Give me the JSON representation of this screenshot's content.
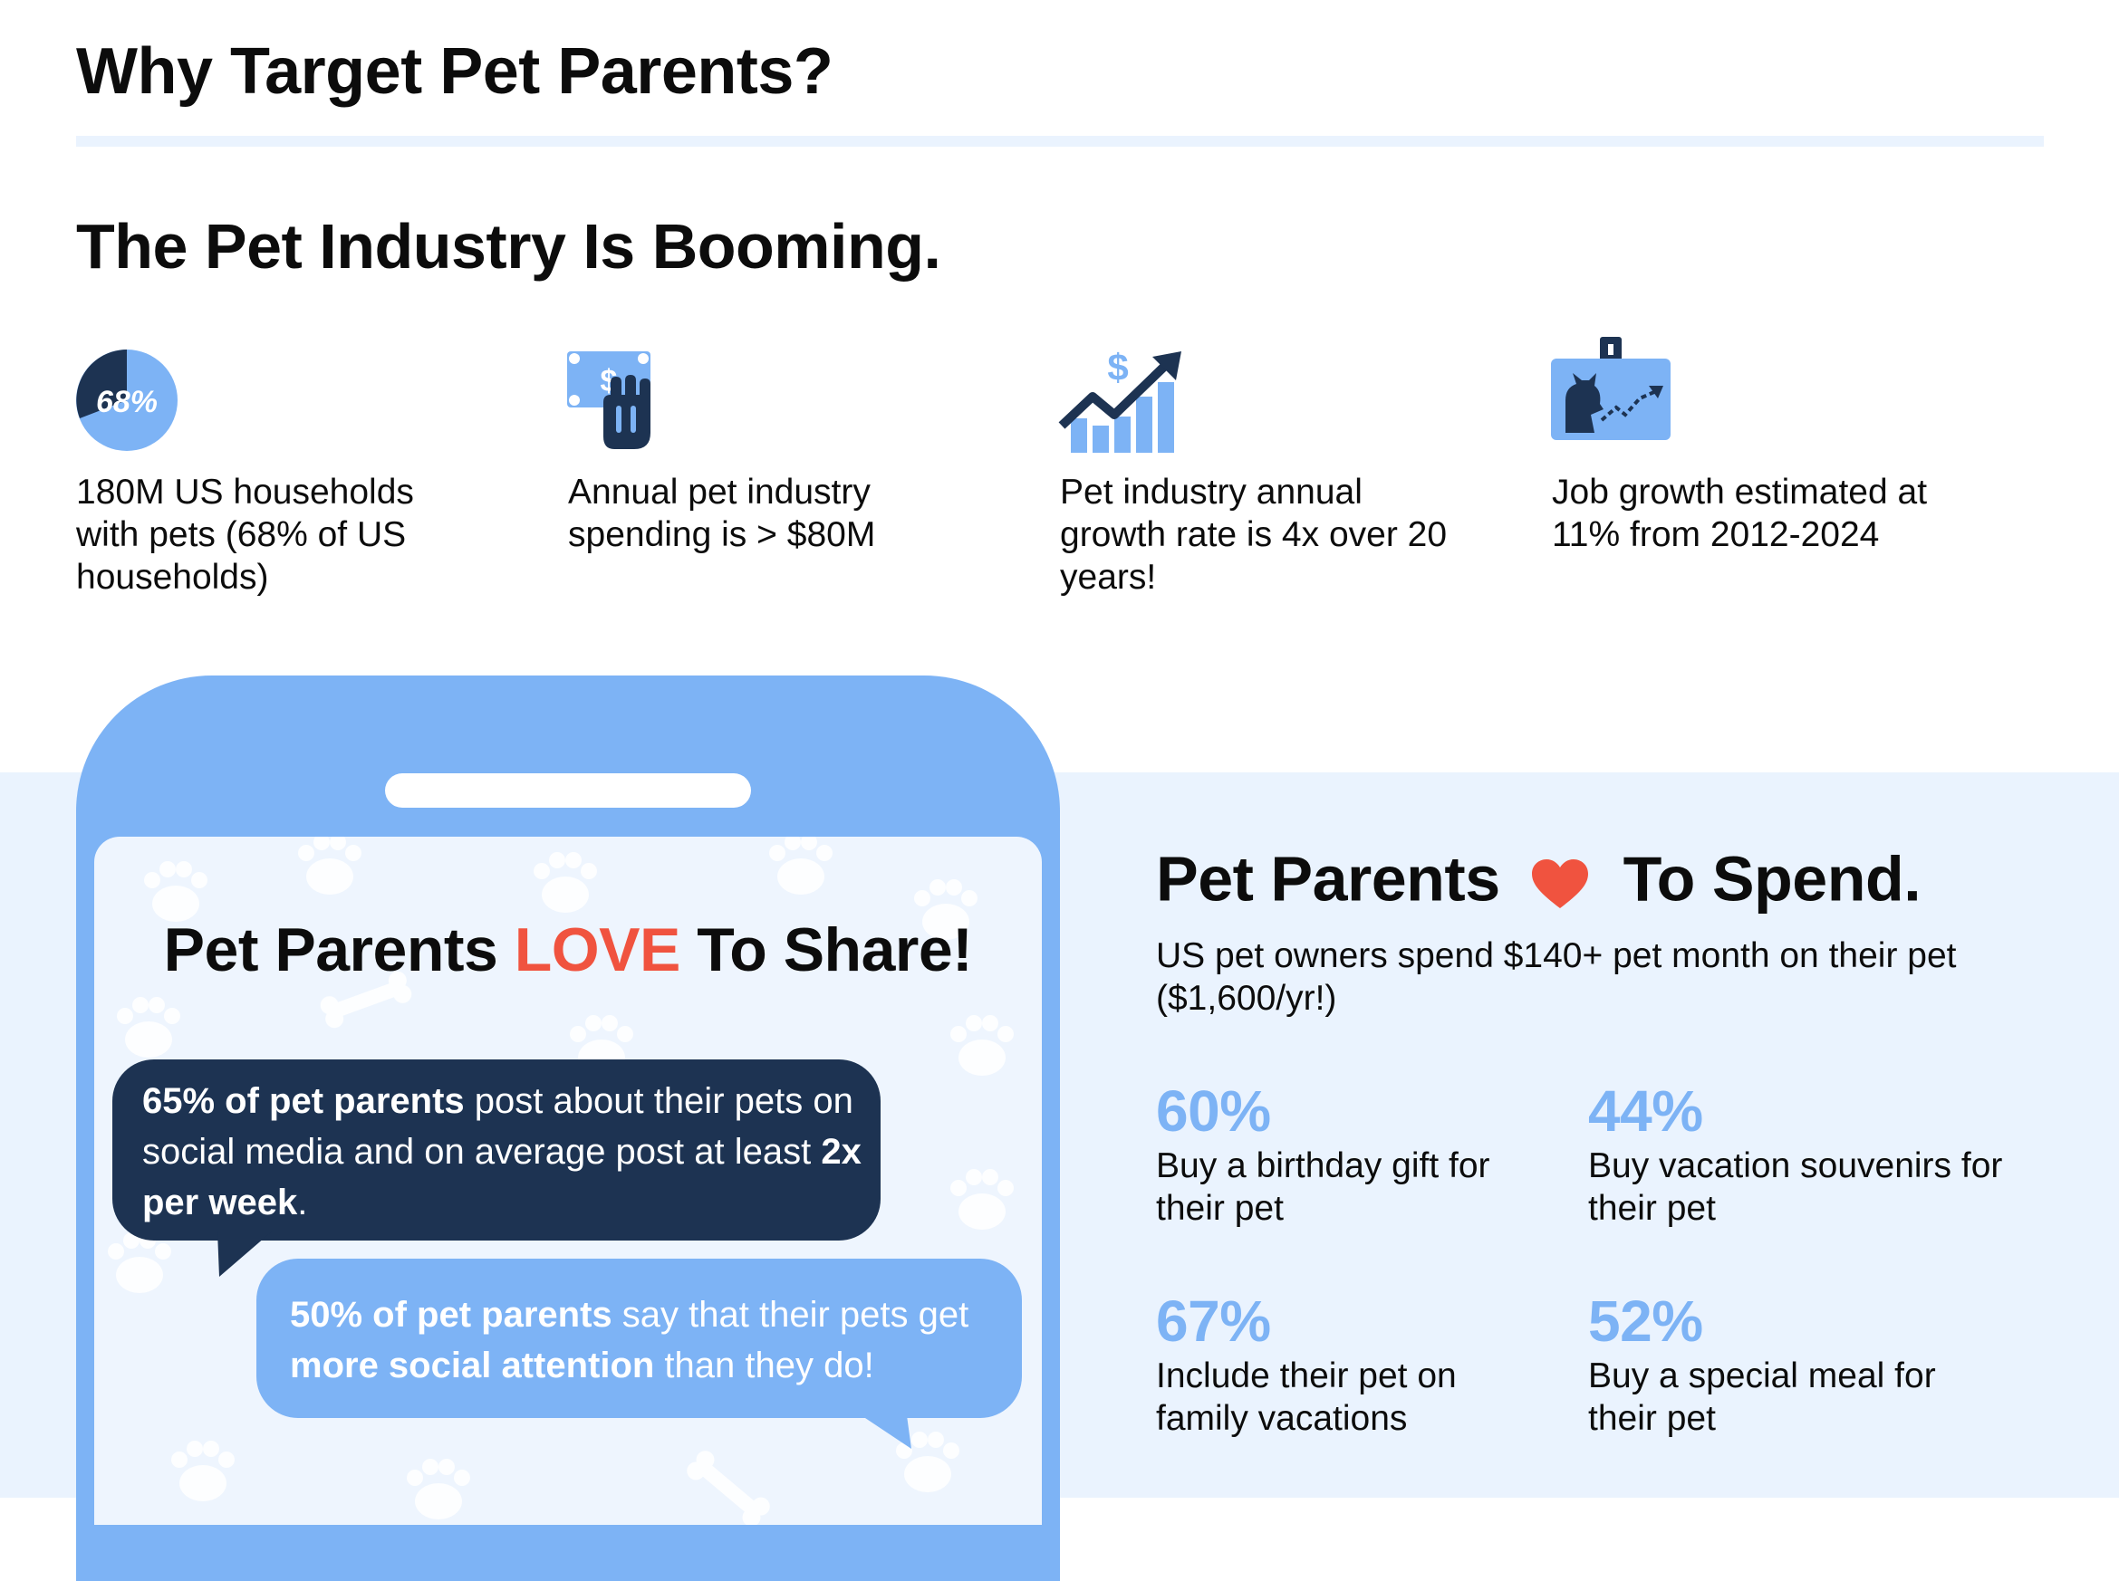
{
  "header": {
    "title": "Why Target Pet Parents?"
  },
  "industry": {
    "title": "The Pet Industry Is Booming.",
    "stats": [
      {
        "icon": "pie-chart-68-icon",
        "icon_label": "68%",
        "text": "180M US households with pets (68% of US households)"
      },
      {
        "icon": "money-hand-icon",
        "icon_label": "$",
        "text": "Annual pet industry spending is > $80M"
      },
      {
        "icon": "growth-chart-icon",
        "icon_label": "$",
        "text": "Pet industry annual growth rate is 4x over 20 years!"
      },
      {
        "icon": "job-growth-board-icon",
        "text": "Job growth estimated at 11% from 2012-2024"
      }
    ]
  },
  "share": {
    "title_pre": "Pet Parents ",
    "title_love": "LOVE",
    "title_post": " To Share!",
    "bubble1": {
      "b1": "65% of pet parents",
      "t1": " post about their pets on social media and on average post at least ",
      "b2": "2x per week",
      "t2": "."
    },
    "bubble2": {
      "b1": "50% of pet parents",
      "t1": " say that their pets get ",
      "b2": "more social attention",
      "t2": " than they do!"
    }
  },
  "spend": {
    "title_pre": "Pet Parents",
    "title_post": "To Spend.",
    "subtitle": "US pet owners spend $140+ pet month on their pet ($1,600/yr!)",
    "facts": [
      {
        "pct": "60%",
        "label": "Buy a birthday gift for their pet"
      },
      {
        "pct": "44%",
        "label": "Buy vacation souvenirs for their pet"
      },
      {
        "pct": "67%",
        "label": "Include their pet on family vacations"
      },
      {
        "pct": "52%",
        "label": "Buy a special meal for their pet"
      }
    ]
  },
  "colors": {
    "accent_blue": "#7db3f5",
    "navy": "#1d3352",
    "love_red": "#f0533f",
    "heart": "#f0533f",
    "band": "#eaf3fe"
  }
}
